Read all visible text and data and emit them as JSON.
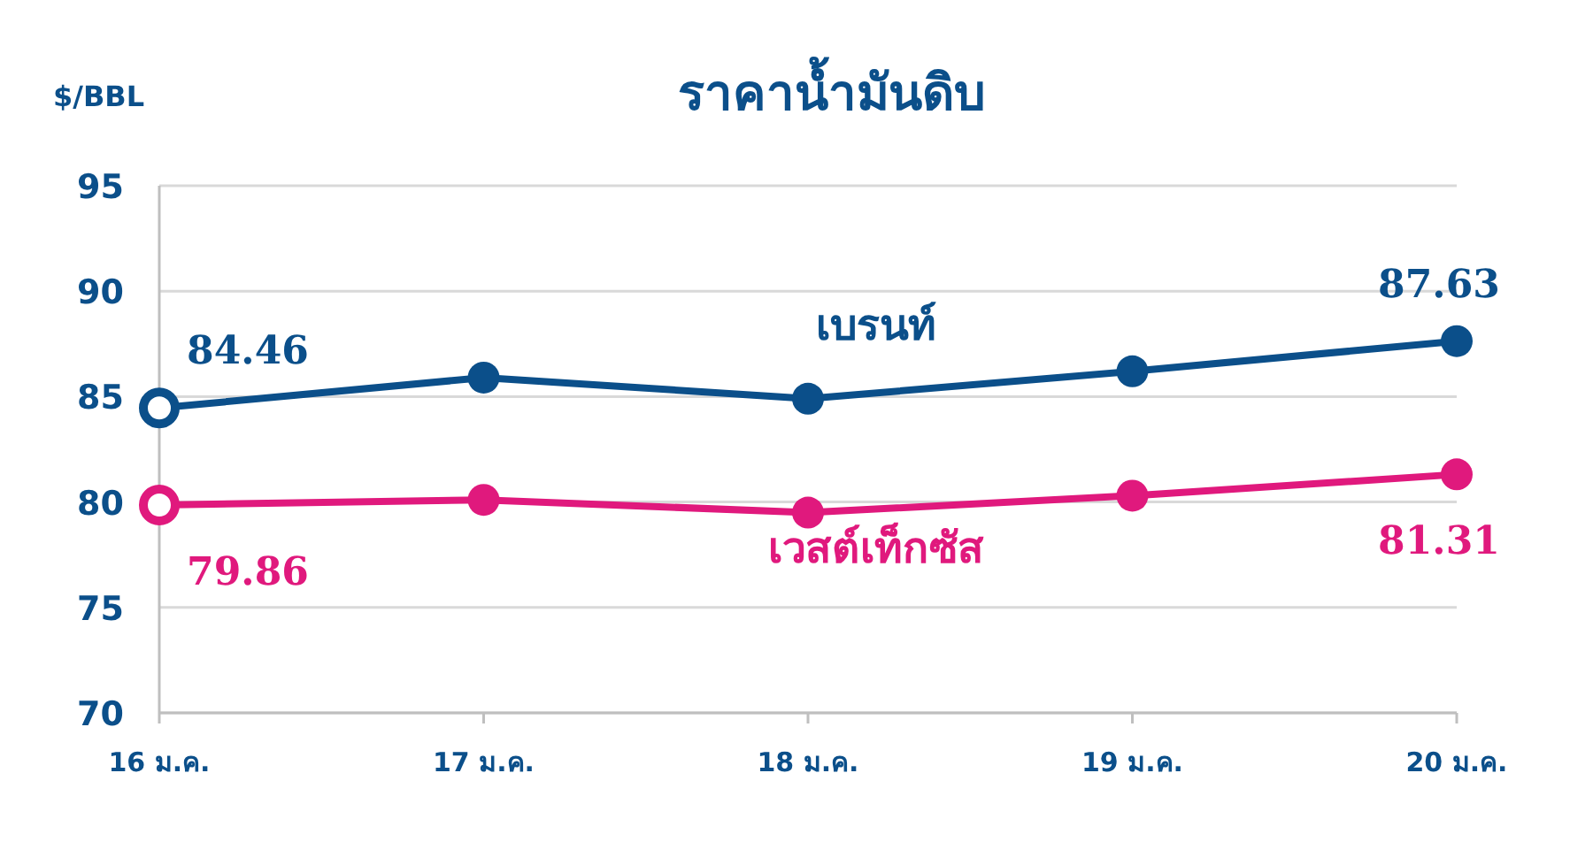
{
  "chart_data": {
    "type": "line",
    "title": "ราคาน้ำมันดิบ",
    "ylabel": "$/BBL",
    "categories": [
      "16 ม.ค.",
      "17 ม.ค.",
      "18 ม.ค.",
      "19 ม.ค.",
      "20 ม.ค."
    ],
    "series": [
      {
        "name": "เบรนท์",
        "color": "#0b4f8a",
        "values": [
          84.46,
          85.9,
          84.9,
          86.2,
          87.63
        ],
        "value_labels": [
          "84.46",
          null,
          null,
          null,
          "87.63"
        ]
      },
      {
        "name": "เวสต์เท็กซัส",
        "color": "#e0197d",
        "values": [
          79.86,
          80.1,
          79.5,
          80.3,
          81.31
        ],
        "value_labels": [
          "79.86",
          null,
          null,
          null,
          "81.31"
        ]
      }
    ],
    "ylim": [
      70,
      95
    ],
    "yticks": [
      70,
      75,
      80,
      85,
      90,
      95
    ],
    "grid": "y",
    "marker": "circle",
    "line_style": "solid"
  }
}
